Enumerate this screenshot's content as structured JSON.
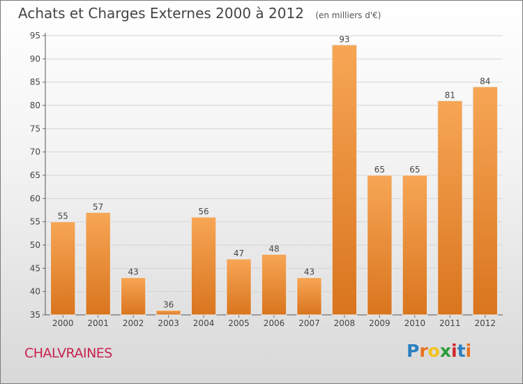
{
  "title": "Achats et Charges Externes 2000 à 2012",
  "unit_label": "(en milliers d'€)",
  "commune": "CHALVRAINES",
  "logo": {
    "text": "Proxiti",
    "letters": [
      "P",
      "r",
      "o",
      "x",
      "i",
      "t",
      "i"
    ],
    "colors": [
      "#2a7fc1",
      "#e8721c",
      "#f2c21b",
      "#2a9a3a",
      "#d2232a",
      "#2a7fc1",
      "#e8721c"
    ]
  },
  "colors": {
    "bar_top": "#f7a655",
    "bar_bottom": "#d9751e",
    "accent": "#c8234e"
  },
  "chart_data": {
    "type": "bar",
    "categories": [
      "2000",
      "2001",
      "2002",
      "2003",
      "2004",
      "2005",
      "2006",
      "2007",
      "2008",
      "2009",
      "2010",
      "2011",
      "2012"
    ],
    "values": [
      55,
      57,
      43,
      36,
      56,
      47,
      48,
      43,
      93,
      65,
      65,
      81,
      84
    ],
    "ylim": [
      35,
      95
    ],
    "yticks": [
      35,
      40,
      45,
      50,
      55,
      60,
      65,
      70,
      75,
      80,
      85,
      90,
      95
    ],
    "grid": true,
    "xlabel": "",
    "ylabel": ""
  }
}
